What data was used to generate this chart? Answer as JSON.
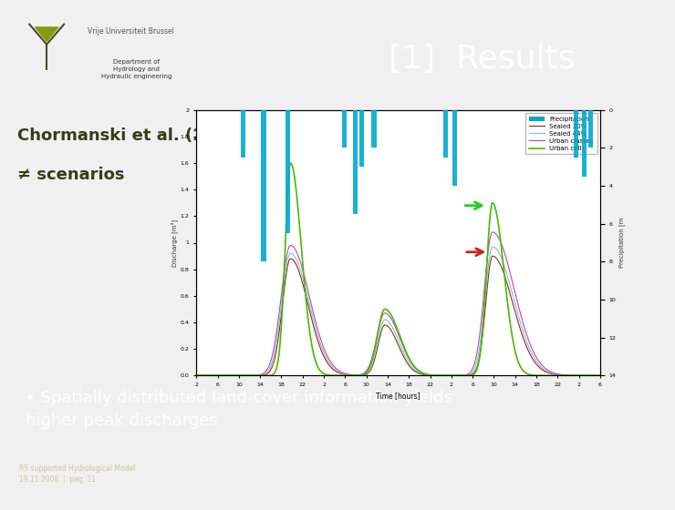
{
  "bg_color": "#f0f0f0",
  "header_bg": "#636349",
  "header_text": "[1]  Results",
  "header_text_color": "#ffffff",
  "header_font_size": 26,
  "logo_bg": "#ffffff",
  "logo_text1": "Vrije Universiteit Brussel",
  "logo_text2": "Department of\nHydrology and\nHydraulic engineering",
  "title_line1": "Chormanski et al. (2008)",
  "title_line2": "≠ scenarios",
  "title_font_size": 13,
  "title_color": "#3a3a1a",
  "bullet_bg": "#8a9a10",
  "bullet_text": "• Spatially distributed land-cover information yields\nhigher peak discharges",
  "bullet_text_color": "#ffffff",
  "bullet_font_size": 13,
  "footer_bg": "#636349",
  "footer_text": "RS supported Hydrological Model\n19.11.2008  |  pag. 11",
  "footer_text_color": "#c8c8a0",
  "footer_font_size": 5.5,
  "axis_bg": "#ffffff",
  "ylabel_discharge": "Discharge [m³]",
  "ylabel_precip": "Precipitation [m",
  "xlabel": "Time [hours]",
  "xtick_labels": [
    "2",
    "6",
    "10",
    "14",
    "18",
    "22",
    "2",
    "6",
    "10",
    "14",
    "18",
    "22",
    "2",
    "6",
    "10",
    "14",
    "18",
    "22",
    "2",
    "6"
  ],
  "legend_labels": [
    "Precipitation",
    "Sealed 30%",
    "Sealed 44%",
    "Urban classes",
    "Urban cells"
  ],
  "legend_colors": [
    "#00aacc",
    "#8b3010",
    "#88bbcc",
    "#bb44bb",
    "#44bb00"
  ],
  "line_widths": [
    1.2,
    0.8,
    0.8,
    0.8,
    1.2
  ]
}
